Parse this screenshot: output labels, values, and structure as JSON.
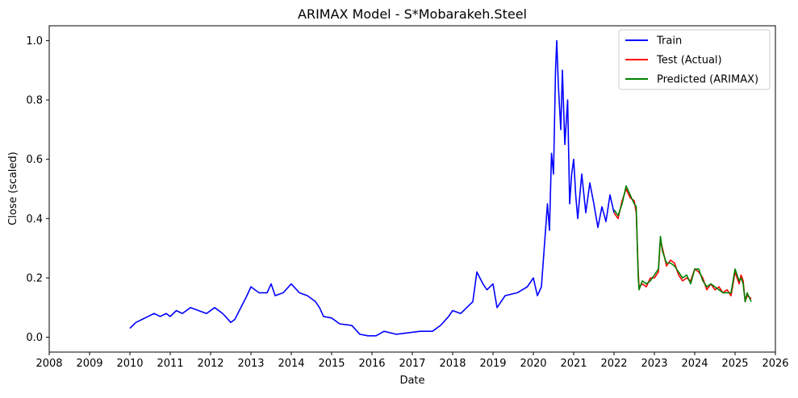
{
  "chart_data": {
    "type": "line",
    "title": "ARIMAX Model - S*Mobarakeh.Steel",
    "xlabel": "Date",
    "ylabel": "Close (scaled)",
    "xlim": [
      2008.0,
      2026.0
    ],
    "ylim": [
      -0.05,
      1.05
    ],
    "x_ticks": [
      "2008",
      "2009",
      "2010",
      "2011",
      "2012",
      "2013",
      "2014",
      "2015",
      "2016",
      "2017",
      "2018",
      "2019",
      "2020",
      "2021",
      "2022",
      "2023",
      "2024",
      "2025",
      "2026"
    ],
    "y_ticks": [
      "0.0",
      "0.2",
      "0.4",
      "0.6",
      "0.8",
      "1.0"
    ],
    "grid": false,
    "legend_position": "upper right",
    "series": [
      {
        "name": "Train",
        "color": "#0000ff",
        "x": [
          2010.0,
          2010.15,
          2010.3,
          2010.45,
          2010.6,
          2010.75,
          2010.9,
          2011.0,
          2011.15,
          2011.3,
          2011.5,
          2011.7,
          2011.9,
          2012.1,
          2012.3,
          2012.5,
          2012.6,
          2012.75,
          2012.9,
          2013.0,
          2013.2,
          2013.4,
          2013.5,
          2013.6,
          2013.8,
          2014.0,
          2014.2,
          2014.4,
          2014.6,
          2014.7,
          2014.8,
          2015.0,
          2015.2,
          2015.5,
          2015.7,
          2015.9,
          2016.1,
          2016.3,
          2016.6,
          2016.9,
          2017.2,
          2017.5,
          2017.7,
          2017.9,
          2018.0,
          2018.2,
          2018.5,
          2018.6,
          2018.75,
          2018.85,
          2019.0,
          2019.1,
          2019.3,
          2019.6,
          2019.85,
          2020.0,
          2020.1,
          2020.2,
          2020.35,
          2020.4,
          2020.45,
          2020.5,
          2020.55,
          2020.58,
          2020.62,
          2020.68,
          2020.72,
          2020.78,
          2020.85,
          2020.9,
          2020.95,
          2021.0,
          2021.05,
          2021.1,
          2021.2,
          2021.3,
          2021.4,
          2021.5,
          2021.6,
          2021.7,
          2021.8,
          2021.9,
          2022.0
        ],
        "values": [
          0.03,
          0.05,
          0.06,
          0.07,
          0.08,
          0.07,
          0.08,
          0.07,
          0.09,
          0.08,
          0.1,
          0.09,
          0.08,
          0.1,
          0.08,
          0.05,
          0.06,
          0.1,
          0.14,
          0.17,
          0.15,
          0.15,
          0.18,
          0.14,
          0.15,
          0.18,
          0.15,
          0.14,
          0.12,
          0.1,
          0.07,
          0.065,
          0.045,
          0.04,
          0.01,
          0.005,
          0.005,
          0.02,
          0.01,
          0.015,
          0.02,
          0.02,
          0.04,
          0.07,
          0.09,
          0.08,
          0.12,
          0.22,
          0.18,
          0.16,
          0.18,
          0.1,
          0.14,
          0.15,
          0.17,
          0.2,
          0.14,
          0.17,
          0.45,
          0.36,
          0.62,
          0.55,
          0.9,
          1.0,
          0.85,
          0.7,
          0.9,
          0.65,
          0.8,
          0.45,
          0.55,
          0.6,
          0.48,
          0.4,
          0.55,
          0.42,
          0.52,
          0.45,
          0.37,
          0.44,
          0.39,
          0.48,
          0.42
        ]
      },
      {
        "name": "Test (Actual)",
        "color": "#ff0000",
        "x": [
          2022.0,
          2022.1,
          2022.2,
          2022.3,
          2022.4,
          2022.5,
          2022.55,
          2022.6,
          2022.62,
          2022.7,
          2022.8,
          2022.9,
          2023.0,
          2023.1,
          2023.15,
          2023.2,
          2023.3,
          2023.4,
          2023.5,
          2023.6,
          2023.7,
          2023.8,
          2023.9,
          2024.0,
          2024.1,
          2024.2,
          2024.3,
          2024.4,
          2024.5,
          2024.6,
          2024.7,
          2024.8,
          2024.9,
          2025.0,
          2025.05,
          2025.1,
          2025.15,
          2025.2,
          2025.25,
          2025.3,
          2025.4
        ],
        "values": [
          0.42,
          0.4,
          0.46,
          0.5,
          0.47,
          0.46,
          0.42,
          0.22,
          0.17,
          0.18,
          0.17,
          0.2,
          0.2,
          0.22,
          0.33,
          0.3,
          0.24,
          0.26,
          0.25,
          0.21,
          0.19,
          0.2,
          0.19,
          0.23,
          0.22,
          0.2,
          0.16,
          0.18,
          0.16,
          0.17,
          0.15,
          0.16,
          0.14,
          0.22,
          0.2,
          0.18,
          0.21,
          0.19,
          0.12,
          0.14,
          0.13
        ]
      },
      {
        "name": "Predicted (ARIMAX)",
        "color": "#008000",
        "x": [
          2022.0,
          2022.1,
          2022.2,
          2022.3,
          2022.4,
          2022.5,
          2022.55,
          2022.6,
          2022.62,
          2022.7,
          2022.8,
          2022.9,
          2023.0,
          2023.1,
          2023.15,
          2023.2,
          2023.3,
          2023.4,
          2023.5,
          2023.6,
          2023.7,
          2023.8,
          2023.9,
          2024.0,
          2024.1,
          2024.2,
          2024.3,
          2024.4,
          2024.5,
          2024.6,
          2024.7,
          2024.8,
          2024.9,
          2025.0,
          2025.05,
          2025.1,
          2025.15,
          2025.2,
          2025.25,
          2025.3,
          2025.4
        ],
        "values": [
          0.43,
          0.41,
          0.45,
          0.51,
          0.48,
          0.45,
          0.44,
          0.2,
          0.16,
          0.19,
          0.18,
          0.19,
          0.21,
          0.23,
          0.34,
          0.29,
          0.25,
          0.25,
          0.24,
          0.22,
          0.2,
          0.21,
          0.18,
          0.23,
          0.23,
          0.19,
          0.17,
          0.18,
          0.17,
          0.16,
          0.15,
          0.15,
          0.15,
          0.23,
          0.21,
          0.19,
          0.2,
          0.18,
          0.12,
          0.15,
          0.12
        ]
      }
    ]
  }
}
